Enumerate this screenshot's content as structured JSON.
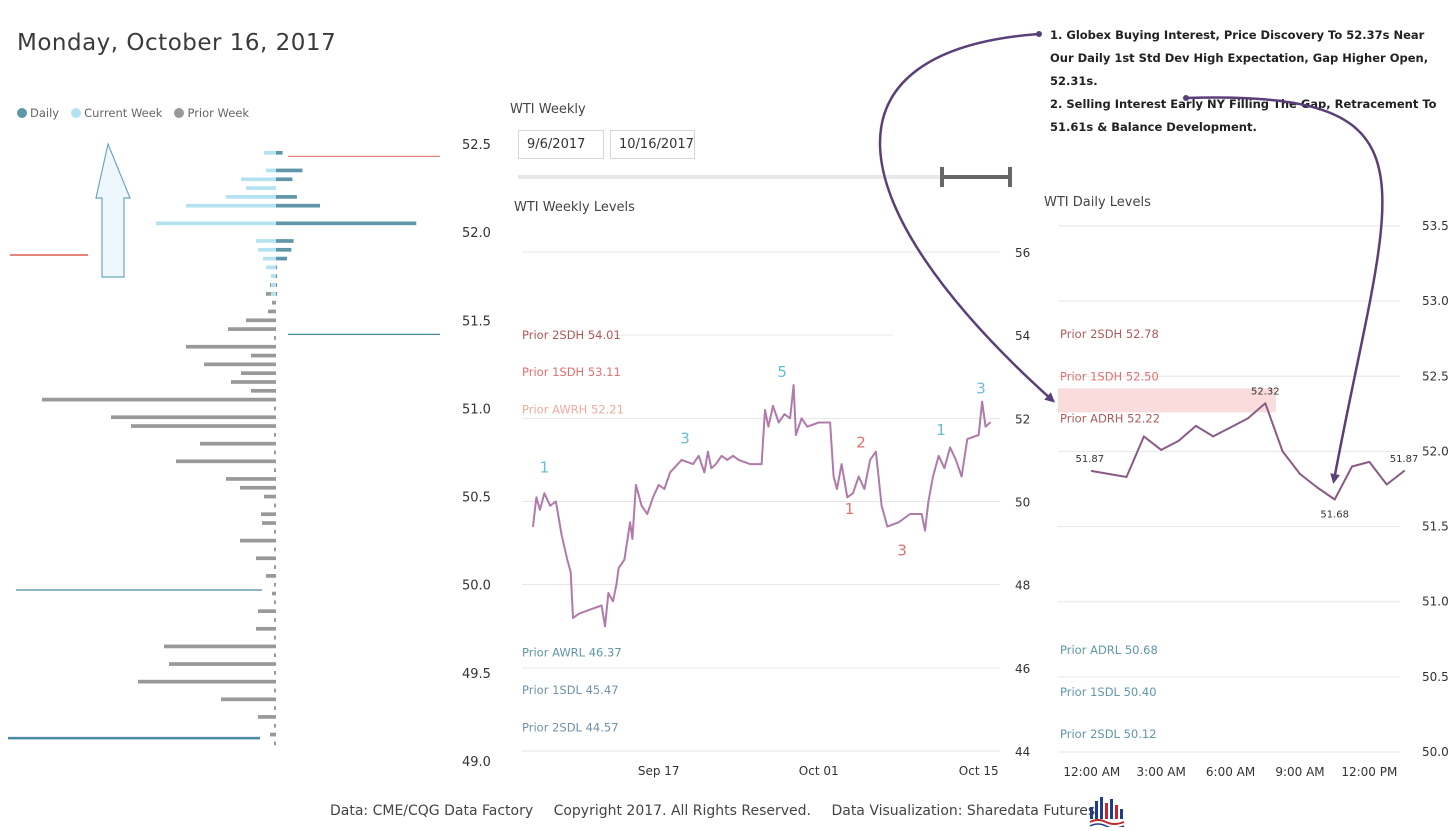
{
  "title": "Monday, October 16, 2017",
  "legend": {
    "items": [
      {
        "label": "Daily",
        "color": "#5f97a8"
      },
      {
        "label": "Current Week",
        "color": "#b4e2f0"
      },
      {
        "label": "Prior Week",
        "color": "#999999"
      }
    ]
  },
  "weekly_panel": {
    "title": "WTI Weekly",
    "date_start": "9/6/2017",
    "date_end": "10/16/2017",
    "levels_title": "WTI Weekly Levels"
  },
  "daily_panel": {
    "levels_title": "WTI Daily Levels"
  },
  "annotation": {
    "line1": "1. Globex Buying Interest, Price Discovery To 52.37s Near Our Daily 1st Std Dev High Expectation, Gap Higher Open, 52.31s.",
    "line2": "2. Selling Interest Early NY Filling The Gap, Retracement To 51.61s & Balance Development."
  },
  "footer": {
    "source": "Data: CME/CQG Data Factory",
    "copyright": "Copyright 2017. All Rights Reserved.",
    "viz": "Data Visualization: Sharedata Futures"
  },
  "chart_data": [
    {
      "type": "bar",
      "name": "volume-profile",
      "orientation": "horizontal",
      "ylim": [
        49.0,
        52.5
      ],
      "y_ticks": [
        "52.5",
        "52.0",
        "51.5",
        "51.0",
        "50.5",
        "50.0",
        "49.5",
        "49.0"
      ],
      "y_tick_values": [
        52.5,
        52.0,
        51.5,
        51.0,
        50.5,
        50.0,
        49.5,
        49.0
      ],
      "upward_arrow": true,
      "series": [
        {
          "name": "Daily",
          "color": "#5f97a8",
          "prices": [
            52.45,
            52.35,
            52.3,
            52.25,
            52.2,
            52.15,
            52.05,
            51.95,
            51.9,
            51.85,
            51.8,
            51.75,
            51.7,
            51.65
          ],
          "values": [
            12,
            48,
            30,
            0,
            38,
            80,
            255,
            32,
            28,
            20,
            2,
            2,
            2,
            2
          ]
        },
        {
          "name": "Current Week",
          "color": "#b4e2f0",
          "prices": [
            52.45,
            52.35,
            52.3,
            52.25,
            52.2,
            52.15,
            52.05,
            51.95,
            51.9,
            51.85,
            51.8,
            51.75,
            51.7,
            51.65
          ],
          "values": [
            12,
            10,
            35,
            30,
            50,
            90,
            120,
            20,
            18,
            13,
            10,
            5,
            5,
            5
          ]
        },
        {
          "name": "Prior Week",
          "color": "#999999",
          "prices": [
            51.75,
            51.7,
            51.65,
            51.6,
            51.55,
            51.5,
            51.45,
            51.4,
            51.35,
            51.3,
            51.25,
            51.2,
            51.15,
            51.1,
            51.05,
            51.0,
            50.95,
            50.9,
            50.85,
            50.8,
            50.75,
            50.7,
            50.65,
            50.6,
            50.55,
            50.5,
            50.45,
            50.4,
            50.35,
            50.3,
            50.25,
            50.2,
            50.15,
            50.1,
            50.05,
            50.0,
            49.95,
            49.9,
            49.85,
            49.8,
            49.75,
            49.7,
            49.65,
            49.6,
            49.55,
            49.5,
            49.45,
            49.4,
            49.35,
            49.3,
            49.25,
            49.2,
            49.15,
            49.1
          ],
          "values": [
            3,
            6,
            10,
            4,
            8,
            30,
            48,
            2,
            90,
            25,
            72,
            35,
            45,
            25,
            234,
            2,
            165,
            145,
            2,
            76,
            2,
            100,
            2,
            50,
            36,
            12,
            2,
            15,
            14,
            2,
            36,
            2,
            20,
            2,
            10,
            2,
            4,
            2,
            18,
            2,
            20,
            2,
            112,
            2,
            107,
            2,
            138,
            2,
            55,
            2,
            18,
            2,
            6,
            2
          ]
        }
      ],
      "reference_lines": [
        {
          "price": 52.43,
          "side": "right",
          "color": "#e8837a"
        },
        {
          "price": 51.87,
          "side": "left",
          "color": "#e8837a"
        },
        {
          "price": 51.42,
          "side": "right",
          "color": "#4a88a4"
        },
        {
          "price": 49.97,
          "side": "left",
          "color": "#4a88a4"
        },
        {
          "price": 49.13,
          "side": "left",
          "color": "#4a88a4"
        }
      ]
    },
    {
      "type": "line",
      "name": "wti-weekly-levels",
      "title": "WTI Weekly Levels",
      "ylim": [
        44,
        56
      ],
      "y_ticks": [
        "56",
        "54",
        "52",
        "50",
        "48",
        "46",
        "44"
      ],
      "y_tick_values": [
        56,
        54,
        52,
        50,
        48,
        46,
        44
      ],
      "x_ticks": [
        "Sep 17",
        "Oct 01",
        "Oct 15"
      ],
      "x_tick_values": [
        11,
        25,
        39
      ],
      "xlim": [
        0,
        42
      ],
      "color": "#b07aaa",
      "x": [
        0,
        0.3,
        0.6,
        1,
        1.5,
        2,
        2.5,
        3,
        3.3,
        3.5,
        4,
        5,
        6,
        6.3,
        6.6,
        7,
        7.3,
        7.5,
        8,
        8.5,
        8.7,
        9,
        9.5,
        10,
        10.5,
        11,
        11.5,
        12,
        13,
        14,
        14.5,
        15,
        15.3,
        15.6,
        16,
        16.5,
        17,
        17.5,
        18,
        19,
        20,
        20.3,
        20.6,
        21,
        21.5,
        22,
        22.5,
        22.8,
        23,
        23.5,
        24,
        25,
        26,
        26.3,
        26.6,
        27,
        27.5,
        28,
        28.5,
        29,
        29.5,
        30,
        30.5,
        31,
        32,
        33,
        34,
        34.3,
        34.6,
        35,
        35.5,
        36,
        36.5,
        37,
        37.5,
        38,
        39,
        39.3,
        39.6,
        40
      ],
      "values": [
        49.4,
        50.1,
        49.8,
        50.2,
        49.9,
        50.0,
        49.2,
        48.6,
        48.3,
        47.2,
        47.3,
        47.4,
        47.5,
        47.0,
        47.8,
        47.6,
        48.0,
        48.4,
        48.6,
        49.5,
        49.1,
        50.4,
        49.9,
        49.7,
        50.1,
        50.4,
        50.3,
        50.7,
        51.0,
        50.9,
        51.1,
        50.7,
        51.2,
        50.8,
        50.9,
        51.1,
        51.0,
        51.1,
        51.0,
        50.9,
        50.9,
        52.2,
        51.8,
        52.3,
        51.9,
        52.1,
        52.0,
        52.8,
        51.6,
        52.0,
        51.8,
        51.9,
        51.9,
        50.6,
        50.3,
        50.9,
        50.1,
        50.2,
        50.6,
        50.3,
        51.0,
        51.2,
        49.9,
        49.4,
        49.5,
        49.7,
        49.7,
        49.3,
        50.0,
        50.6,
        51.1,
        50.8,
        51.3,
        51.0,
        50.6,
        51.5,
        51.6,
        52.4,
        51.8,
        51.9
      ],
      "level_labels": [
        {
          "label": "Prior 2SDH 54.01",
          "value": 54.01,
          "color": "#b05a5a"
        },
        {
          "label": "Prior 1SDH 53.11",
          "value": 53.11,
          "color": "#e07070"
        },
        {
          "label": "Prior AWRH 52.21",
          "value": 52.21,
          "color": "#eeaaa0"
        },
        {
          "label": "Prior AWRL 46.37",
          "value": 46.37,
          "color": "#5f97a8"
        },
        {
          "label": "Prior 1SDL 45.47",
          "value": 45.47,
          "color": "#6f93a8"
        },
        {
          "label": "Prior 2SDL 44.57",
          "value": 44.57,
          "color": "#6f93a8"
        }
      ],
      "annotations": [
        {
          "text": "1",
          "x": 1,
          "y": 50.7,
          "color": "#66bdd8"
        },
        {
          "text": "3",
          "x": 13.3,
          "y": 51.4,
          "color": "#66bdd8"
        },
        {
          "text": "5",
          "x": 21.8,
          "y": 53.0,
          "color": "#66bdd8"
        },
        {
          "text": "2",
          "x": 28.7,
          "y": 51.3,
          "color": "#e07070"
        },
        {
          "text": "1",
          "x": 27.7,
          "y": 49.7,
          "color": "#e07070"
        },
        {
          "text": "3",
          "x": 32.3,
          "y": 48.7,
          "color": "#e07070"
        },
        {
          "text": "1",
          "x": 35.7,
          "y": 51.6,
          "color": "#66bdd8"
        },
        {
          "text": "3",
          "x": 39.2,
          "y": 52.6,
          "color": "#66bdd8"
        }
      ]
    },
    {
      "type": "line",
      "name": "wti-daily-levels",
      "title": "WTI Daily Levels",
      "ylim": [
        50.0,
        53.5
      ],
      "y_ticks": [
        "53.5",
        "53.0",
        "52.5",
        "52.0",
        "51.5",
        "51.0",
        "50.5",
        "50.0"
      ],
      "y_tick_values": [
        53.5,
        53.0,
        52.5,
        52.0,
        51.5,
        51.0,
        50.5,
        50.0
      ],
      "x_ticks": [
        "12:00 AM",
        "3:00 AM",
        "6:00 AM",
        "9:00 AM",
        "12:00 PM"
      ],
      "x_tick_values": [
        0,
        3,
        6,
        9,
        12
      ],
      "xlim": [
        -0.9,
        13.8
      ],
      "color": "#8a5c85",
      "x": [
        0,
        0.75,
        1.5,
        2.25,
        3,
        3.75,
        4.5,
        5.25,
        6,
        6.75,
        7.5,
        8.25,
        9,
        9.75,
        10.5,
        11.25,
        12,
        12.75,
        13.5
      ],
      "values": [
        51.87,
        51.85,
        51.83,
        52.1,
        52.01,
        52.07,
        52.17,
        52.1,
        52.16,
        52.22,
        52.32,
        52.0,
        51.85,
        51.76,
        51.68,
        51.9,
        51.93,
        51.78,
        51.87
      ],
      "point_labels": [
        {
          "text": "51.87",
          "x": 0,
          "y": 51.87
        },
        {
          "text": "52.32",
          "x": 7.5,
          "y": 52.32
        },
        {
          "text": "51.68",
          "x": 10.5,
          "y": 51.68
        },
        {
          "text": "51.87",
          "x": 13.5,
          "y": 51.87
        }
      ],
      "level_labels": [
        {
          "label": "Prior 2SDH 52.78",
          "value": 52.78,
          "color": "#b05a5a"
        },
        {
          "label": "Prior 1SDH 52.50",
          "value": 52.5,
          "color": "#e07070"
        },
        {
          "label": "Prior ADRH 52.22",
          "value": 52.22,
          "color": "#b05a5a"
        },
        {
          "label": "Prior ADRL 50.68",
          "value": 50.68,
          "color": "#5f97a8"
        },
        {
          "label": "Prior 1SDL 50.40",
          "value": 50.4,
          "color": "#5f97a8"
        },
        {
          "label": "Prior 2SDL 50.12",
          "value": 50.12,
          "color": "#5f97a8"
        }
      ],
      "highlight_band": {
        "low": 52.26,
        "high": 52.42,
        "color": "#fbdcdc"
      }
    }
  ]
}
